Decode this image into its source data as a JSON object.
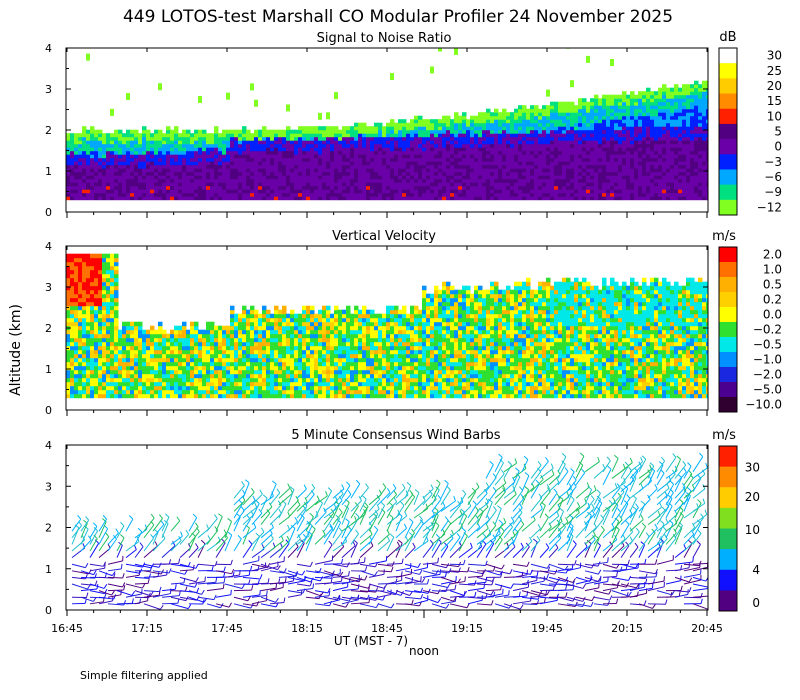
{
  "title": "449 LOTOS-test Marshall CO Modular Profiler 24 November 2025",
  "ylabel": "Altitude (km)",
  "xlabel": "UT  (MST - 7)",
  "noon_label": "noon",
  "footer": "Simple filtering applied",
  "chart_data": [
    {
      "type": "heatmap",
      "title": "Signal to Noise Ratio",
      "units": "dB",
      "x_ticks": [
        "16:45",
        "17:15",
        "17:45",
        "18:15",
        "18:45",
        "19:15",
        "19:45",
        "20:15",
        "20:45"
      ],
      "y_ticks": [
        "0",
        "1",
        "2",
        "3",
        "4"
      ],
      "ylim": [
        0,
        4
      ],
      "colorbar": {
        "labels": [
          "30",
          "25",
          "20",
          "15",
          "10",
          "5",
          "0",
          "−3",
          "−6",
          "−9",
          "−12"
        ],
        "colors": [
          "#ffffff",
          "#ffff00",
          "#ffcc00",
          "#ff8c00",
          "#ff2000",
          "#500080",
          "#6a00a8",
          "#0020ff",
          "#00a8ff",
          "#00e080",
          "#80ff20"
        ]
      }
    },
    {
      "type": "heatmap",
      "title": "Vertical Velocity",
      "units": "m/s",
      "x_ticks": [
        "16:45",
        "17:15",
        "17:45",
        "18:15",
        "18:45",
        "19:15",
        "19:45",
        "20:15",
        "20:45"
      ],
      "y_ticks": [
        "0",
        "1",
        "2",
        "3",
        "4"
      ],
      "ylim": [
        0,
        4
      ],
      "colorbar": {
        "labels": [
          "2.0",
          "1.0",
          "0.5",
          "0.2",
          "0.0",
          "−0.2",
          "−0.5",
          "−1.0",
          "−2.0",
          "−5.0",
          "−10.0"
        ],
        "colors": [
          "#ff0000",
          "#ff7000",
          "#ffb000",
          "#ffd000",
          "#ffff00",
          "#30e030",
          "#00e8e8",
          "#0090ff",
          "#1a28e0",
          "#4b0090",
          "#300030"
        ]
      }
    },
    {
      "type": "scatter",
      "title": "5 Minute Consensus Wind Barbs",
      "units": "m/s",
      "x_ticks": [
        "16:45",
        "17:15",
        "17:45",
        "18:15",
        "18:45",
        "19:15",
        "19:45",
        "20:15",
        "20:45"
      ],
      "y_ticks": [
        "0",
        "1",
        "2",
        "3",
        "4"
      ],
      "ylim": [
        0,
        4
      ],
      "colorbar": {
        "labels": [
          "30",
          "20",
          "10",
          "4",
          "0"
        ],
        "colors": [
          "#ff2000",
          "#ff8c00",
          "#ffcc00",
          "#80e020",
          "#20c060",
          "#00b0ff",
          "#1010ff",
          "#500080"
        ]
      }
    }
  ]
}
